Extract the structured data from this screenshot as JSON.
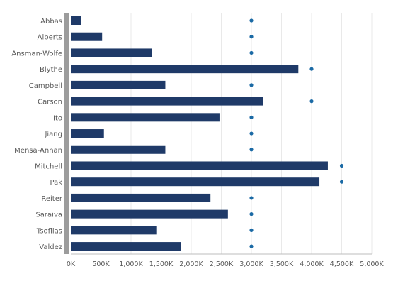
{
  "colors": {
    "bar": "#1f3a68",
    "target": "#1b6aa5",
    "grid": "#e9e9e9",
    "axis": "#bdbdbd",
    "accent_strip": "#9c9c9c",
    "label": "#595959"
  },
  "chart_data": {
    "type": "bar",
    "orientation": "horizontal",
    "title": "",
    "xlabel": "",
    "ylabel": "",
    "grid": true,
    "legend": "none",
    "xlim": [
      0,
      5000000
    ],
    "categories": [
      "Abbas",
      "Alberts",
      "Ansman-Wolfe",
      "Blythe",
      "Campbell",
      "Carson",
      "Ito",
      "Jiang",
      "Mensa-Annan",
      "Mitchell",
      "Pak",
      "Reiter",
      "Saraiva",
      "Tsoflias",
      "Valdez"
    ],
    "series": [
      {
        "type": "bar",
        "values": [
          170000,
          520000,
          1350000,
          3780000,
          1570000,
          3200000,
          2470000,
          550000,
          1570000,
          4270000,
          4130000,
          2320000,
          2610000,
          1420000,
          1830000
        ]
      },
      {
        "type": "marker",
        "values": [
          3000000,
          3000000,
          3000000,
          4000000,
          3000000,
          4000000,
          3000000,
          3000000,
          3000000,
          4500000,
          4500000,
          3000000,
          3000000,
          3000000,
          3000000
        ]
      }
    ],
    "xticks": [
      0,
      500000,
      1000000,
      1500000,
      2000000,
      2500000,
      3000000,
      3500000,
      4000000,
      4500000,
      5000000
    ],
    "xtick_labels": [
      "0K",
      "500K",
      "1,000K",
      "1,500K",
      "2,000K",
      "2,500K",
      "3,000K",
      "3,500K",
      "4,000K",
      "4,500K",
      "5,000K"
    ]
  }
}
